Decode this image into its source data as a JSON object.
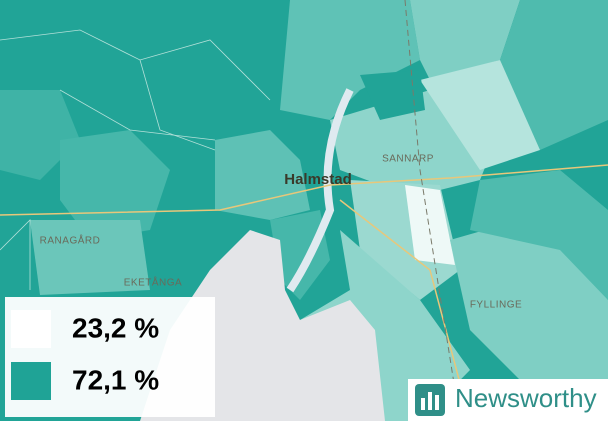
{
  "places": {
    "city": "Halmstad",
    "districts": [
      "SANNARP",
      "RANAGÅRD",
      "EKETÅNGA",
      "FYLLINGE"
    ]
  },
  "legend": [
    {
      "label": "23,2 %",
      "color": "#ffffff"
    },
    {
      "label": "72,1 %",
      "color": "#1fa396"
    }
  ],
  "logo": {
    "text": "Newsworthy"
  }
}
